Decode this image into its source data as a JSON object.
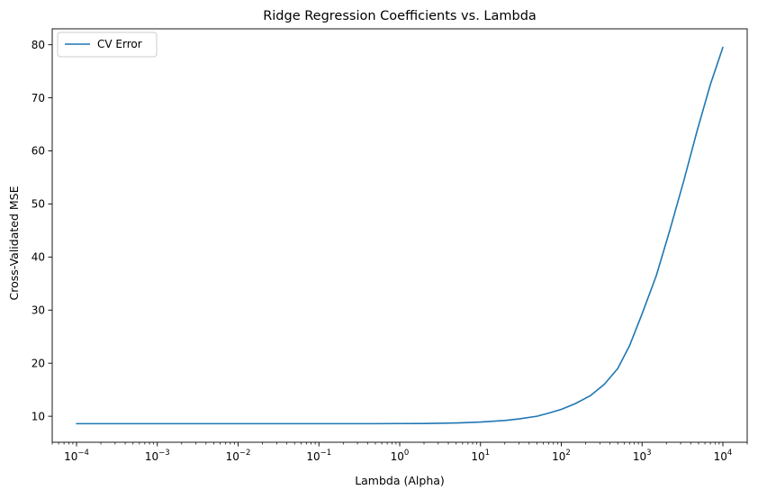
{
  "chart_data": {
    "type": "line",
    "title": "Ridge Regression Coefficients vs. Lambda",
    "xlabel": "Lambda (Alpha)",
    "ylabel": "Cross-Validated MSE",
    "xscale": "log",
    "xlim": [
      5e-05,
      20000
    ],
    "ylim": [
      5.1,
      83.0
    ],
    "grid": false,
    "legend_position": "top-left",
    "xticks": [
      {
        "value": 0.0001,
        "base": "10",
        "exp": "−4"
      },
      {
        "value": 0.001,
        "base": "10",
        "exp": "−3"
      },
      {
        "value": 0.01,
        "base": "10",
        "exp": "−2"
      },
      {
        "value": 0.1,
        "base": "10",
        "exp": "−1"
      },
      {
        "value": 1,
        "base": "10",
        "exp": "0"
      },
      {
        "value": 10,
        "base": "10",
        "exp": "1"
      },
      {
        "value": 100,
        "base": "10",
        "exp": "2"
      },
      {
        "value": 1000,
        "base": "10",
        "exp": "3"
      },
      {
        "value": 10000,
        "base": "10",
        "exp": "4"
      }
    ],
    "yticks": [
      10,
      20,
      30,
      40,
      50,
      60,
      70,
      80
    ],
    "series": [
      {
        "name": "CV Error",
        "color": "#1f77b4",
        "x": [
          0.0001,
          0.01,
          0.5,
          1,
          2,
          3,
          5,
          10,
          20,
          30,
          50,
          70,
          100,
          150,
          230,
          340,
          500,
          700,
          1000,
          1500,
          2200,
          3300,
          4800,
          7000,
          10000
        ],
        "y": [
          8.6,
          8.6,
          8.6,
          8.62,
          8.64,
          8.67,
          8.73,
          8.9,
          9.2,
          9.5,
          10.0,
          10.6,
          11.3,
          12.4,
          13.9,
          16.0,
          19.0,
          23.3,
          29.3,
          36.5,
          45.0,
          54.5,
          63.8,
          72.5,
          79.5
        ]
      }
    ]
  }
}
